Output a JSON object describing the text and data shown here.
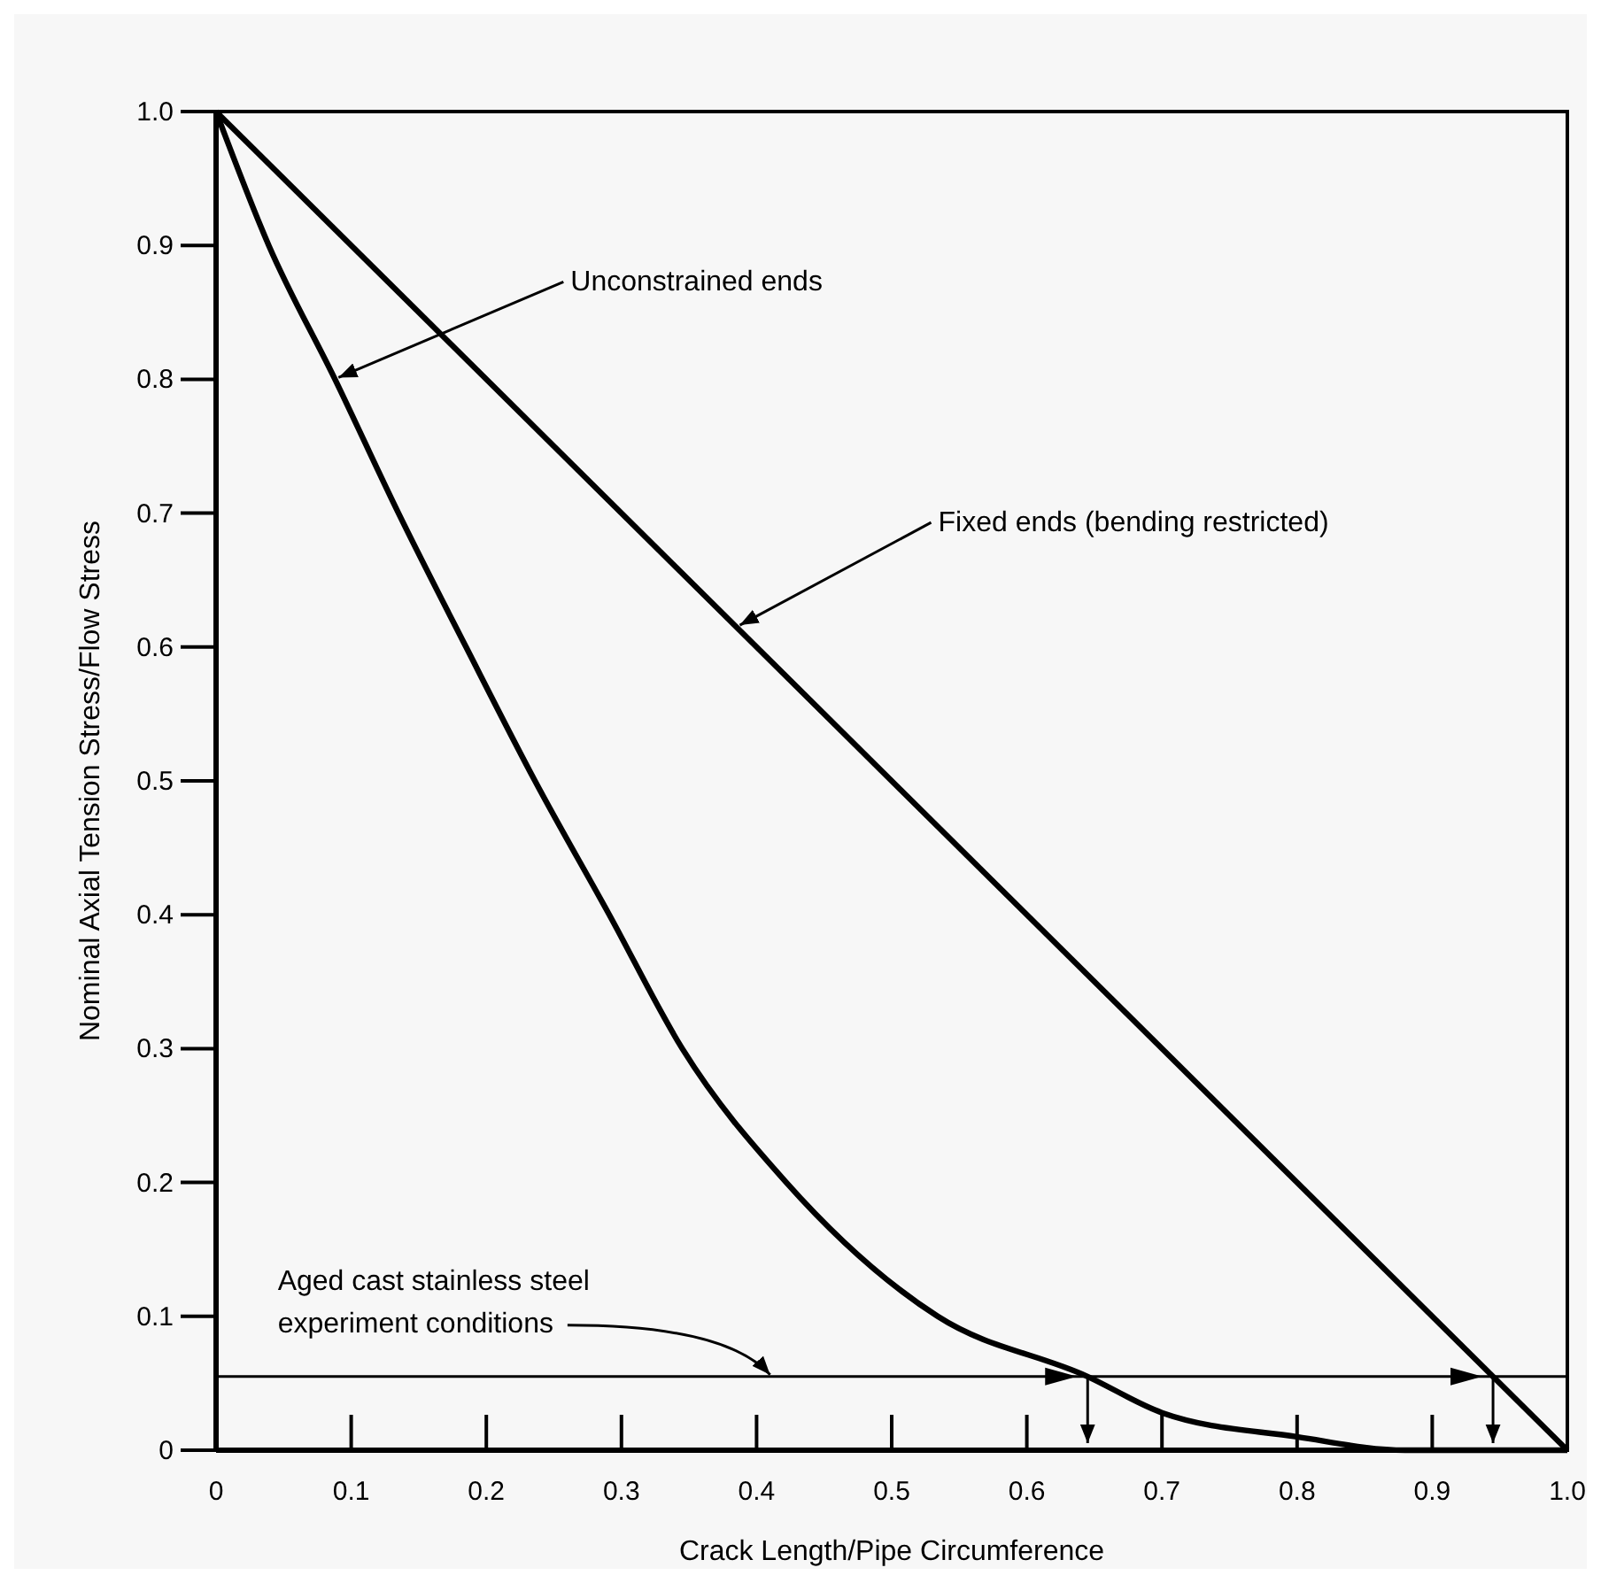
{
  "chart_data": {
    "type": "line",
    "xlabel": "Crack Length/Pipe Circumference",
    "ylabel": "Nominal Axial Tension Stress/Flow Stress",
    "xlim": [
      0,
      1
    ],
    "ylim": [
      0,
      1
    ],
    "xticks": [
      0,
      {
        "value": 0.1,
        "label": "0.1"
      },
      0.2,
      0.3,
      0.4,
      0.5,
      0.6,
      0.7,
      0.8,
      0.9,
      {
        "value": 1,
        "label": "1.0"
      }
    ],
    "yticks": [
      0,
      {
        "value": 0.1,
        "label": "0.1"
      },
      0.2,
      0.3,
      0.4,
      0.5,
      0.6,
      0.7,
      0.8,
      0.9,
      {
        "value": 1,
        "label": "1.0"
      }
    ],
    "series": [
      {
        "color": "#000000",
        "x": [
          0,
          0.039,
          0.088,
          0.135,
          0.185,
          0.236,
          0.291,
          0.345,
          0.422,
          0.534,
          0.645,
          0.7,
          0.8,
          0.88,
          1
        ],
        "values": [
          1,
          0.9,
          0.8,
          0.7,
          0.6,
          0.5,
          0.4,
          0.3,
          0.2,
          0.1,
          0.055,
          0.028,
          0.01,
          0,
          0
        ]
      },
      {
        "color": "#000000",
        "x": [
          0,
          1
        ],
        "values": [
          1,
          0
        ]
      }
    ],
    "ref_lines": [
      {
        "axis": "y",
        "value": 0.055,
        "color": "#000000"
      }
    ],
    "annotations": [
      {
        "text": "Unconstrained ends",
        "x": 0.088,
        "y": 0.8
      },
      {
        "text": "Fixed ends (bending restricted)",
        "x": 0.385,
        "y": 0.615
      },
      {
        "text": "Aged cast stainless steel\nexperiment conditions",
        "x": 0.41,
        "y": 0.055
      }
    ],
    "grid": false,
    "marker": "none",
    "line_style": "solid"
  }
}
